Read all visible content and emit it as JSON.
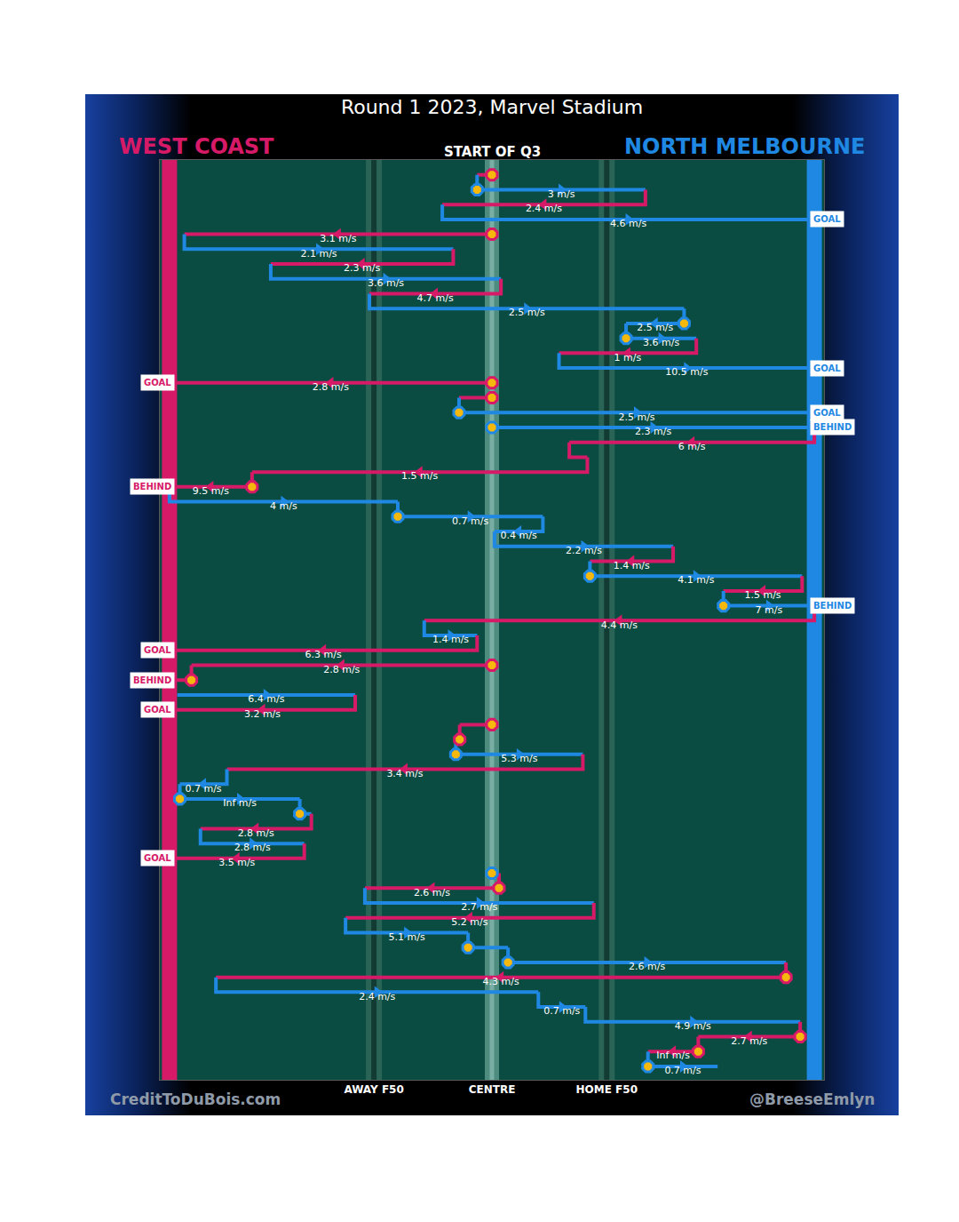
{
  "chart_data": {
    "type": "chain",
    "title": "Round 1 2023, Marvel Stadium",
    "subtitle": "START OF Q3",
    "credits": [
      "CreditToDuBois.com",
      "@BreeseEmlyn"
    ],
    "teams": [
      {
        "name": "WEST COAST",
        "color": "#d61a68",
        "goal_x": 0
      },
      {
        "name": "NORTH MELBOURNE",
        "color": "#1f88e3",
        "goal_x": 100
      }
    ],
    "xlim": [
      -1.5,
      101.5
    ],
    "ylim": [
      60.9,
      -1
    ],
    "xticks": [
      {
        "value": 31.7,
        "label": "AWAY F50"
      },
      {
        "value": 50,
        "label": "CENTRE"
      },
      {
        "value": 67.8,
        "label": "HOME F50"
      }
    ],
    "tick_labels": "x",
    "grid": true,
    "chains": [
      {
        "team": "WEST COAST",
        "from": 50,
        "to": 47.7,
        "stoppage": true
      },
      {
        "team": "NORTH MELBOURNE",
        "from": 47.7,
        "to": 73.8,
        "stoppage": true,
        "label": "3 m/s"
      },
      {
        "team": "WEST COAST",
        "from": 73.8,
        "to": 42.3,
        "stoppage": false,
        "label": "2.4 m/s"
      },
      {
        "team": "NORTH MELBOURNE",
        "from": 42.3,
        "to": 100,
        "stoppage": false,
        "label": "4.6 m/s",
        "outcome": "GOAL"
      },
      {
        "team": "WEST COAST",
        "from": 50,
        "to": 2.3,
        "stoppage": true,
        "label": "3.1 m/s"
      },
      {
        "team": "NORTH MELBOURNE",
        "from": 2.3,
        "to": 44.0,
        "stoppage": false,
        "label": "2.1 m/s"
      },
      {
        "team": "WEST COAST",
        "from": 44.0,
        "to": 15.7,
        "stoppage": false,
        "label": "2.3 m/s"
      },
      {
        "team": "NORTH MELBOURNE",
        "from": 15.7,
        "to": 51.4,
        "stoppage": false,
        "label": "3.6 m/s"
      },
      {
        "team": "WEST COAST",
        "from": 51.4,
        "to": 31.0,
        "stoppage": false,
        "label": "4.7 m/s"
      },
      {
        "team": "NORTH MELBOURNE",
        "from": 31.0,
        "to": 79.8,
        "stoppage": false,
        "label": "2.5 m/s"
      },
      {
        "team": "NORTH MELBOURNE",
        "from": 79.8,
        "to": 70.8,
        "stoppage": true,
        "label": "2.5 m/s"
      },
      {
        "team": "NORTH MELBOURNE",
        "from": 70.8,
        "to": 81.7,
        "stoppage": true,
        "label": "3.6 m/s"
      },
      {
        "team": "WEST COAST",
        "from": 81.7,
        "to": 60.4,
        "stoppage": false,
        "label": "1 m/s"
      },
      {
        "team": "NORTH MELBOURNE",
        "from": 60.4,
        "to": 100,
        "stoppage": false,
        "label": "10.5 m/s",
        "outcome": "GOAL"
      },
      {
        "team": "WEST COAST",
        "from": 50,
        "to": 0,
        "stoppage": true,
        "label": "2.8 m/s",
        "outcome": "GOAL"
      },
      {
        "team": "WEST COAST",
        "from": 50,
        "to": 44.9,
        "stoppage": true
      },
      {
        "team": "NORTH MELBOURNE",
        "from": 44.9,
        "to": 100,
        "stoppage": true,
        "label": "2.5 m/s",
        "outcome": "GOAL"
      },
      {
        "team": "NORTH MELBOURNE",
        "from": 50,
        "to": 100,
        "stoppage": true,
        "label": "2.3 m/s",
        "outcome": "BEHIND"
      },
      {
        "team": "WEST COAST",
        "from": 100,
        "to": 62.0,
        "stoppage": false,
        "label": "6 m/s"
      },
      {
        "team": "WEST COAST",
        "from": 62.0,
        "to": 64.8,
        "stoppage": false
      },
      {
        "team": "WEST COAST",
        "from": 64.8,
        "to": 12.8,
        "stoppage": false,
        "label": "1.5 m/s"
      },
      {
        "team": "WEST COAST",
        "from": 12.8,
        "to": 0,
        "stoppage": true,
        "label": "9.5 m/s",
        "outcome": "BEHIND"
      },
      {
        "team": "NORTH MELBOURNE",
        "from": 0,
        "to": 35.4,
        "stoppage": false,
        "label": "4 m/s"
      },
      {
        "team": "NORTH MELBOURNE",
        "from": 35.4,
        "to": 57.9,
        "stoppage": true,
        "label": "0.7 m/s"
      },
      {
        "team": "NORTH MELBOURNE",
        "from": 57.9,
        "to": 50.4,
        "stoppage": false,
        "label": "0.4 m/s"
      },
      {
        "team": "NORTH MELBOURNE",
        "from": 50.4,
        "to": 78.1,
        "stoppage": false,
        "label": "2.2 m/s"
      },
      {
        "team": "WEST COAST",
        "from": 78.1,
        "to": 65.2,
        "stoppage": false,
        "label": "1.4 m/s"
      },
      {
        "team": "NORTH MELBOURNE",
        "from": 65.2,
        "to": 98.1,
        "stoppage": true,
        "label": "4.1 m/s"
      },
      {
        "team": "WEST COAST",
        "from": 98.1,
        "to": 85.9,
        "stoppage": false,
        "label": "1.5 m/s"
      },
      {
        "team": "NORTH MELBOURNE",
        "from": 85.9,
        "to": 100,
        "stoppage": true,
        "label": "7 m/s",
        "outcome": "BEHIND"
      },
      {
        "team": "WEST COAST",
        "from": 100,
        "to": 39.5,
        "stoppage": false,
        "label": "4.4 m/s"
      },
      {
        "team": "NORTH MELBOURNE",
        "from": 39.5,
        "to": 47.7,
        "stoppage": false,
        "label": "1.4 m/s"
      },
      {
        "team": "WEST COAST",
        "from": 47.7,
        "to": 0,
        "stoppage": false,
        "label": "6.3 m/s",
        "outcome": "GOAL"
      },
      {
        "team": "WEST COAST",
        "from": 50,
        "to": 3.4,
        "stoppage": true,
        "label": "2.8 m/s"
      },
      {
        "team": "WEST COAST",
        "from": 3.4,
        "to": 0,
        "stoppage": true,
        "outcome": "BEHIND"
      },
      {
        "team": "NORTH MELBOURNE",
        "from": 1.2,
        "to": 28.8,
        "stoppage": false,
        "label": "6.4 m/s"
      },
      {
        "team": "WEST COAST",
        "from": 28.8,
        "to": 0,
        "stoppage": false,
        "label": "3.2 m/s",
        "outcome": "GOAL"
      },
      {
        "team": "WEST COAST",
        "from": 50,
        "to": 45.0,
        "stoppage": true
      },
      {
        "team": "WEST COAST",
        "from": 45.0,
        "to": 44.4,
        "stoppage": true
      },
      {
        "team": "NORTH MELBOURNE",
        "from": 44.4,
        "to": 64.1,
        "stoppage": true,
        "label": "5.3 m/s"
      },
      {
        "team": "WEST COAST",
        "from": 64.1,
        "to": 8.9,
        "stoppage": false,
        "label": "3.4 m/s"
      },
      {
        "team": "NORTH MELBOURNE",
        "from": 8.9,
        "to": 1.6,
        "stoppage": false,
        "label": "0.7 m/s"
      },
      {
        "team": "NORTH MELBOURNE",
        "from": 1.6,
        "to": 20.2,
        "stoppage": true,
        "label": "Inf m/s"
      },
      {
        "team": "NORTH MELBOURNE",
        "from": 20.2,
        "to": 22.0,
        "stoppage": true
      },
      {
        "team": "WEST COAST",
        "from": 22.0,
        "to": 4.8,
        "stoppage": false,
        "label": "2.8 m/s"
      },
      {
        "team": "NORTH MELBOURNE",
        "from": 4.8,
        "to": 20.9,
        "stoppage": false,
        "label": "2.8 m/s"
      },
      {
        "team": "WEST COAST",
        "from": 20.9,
        "to": 0,
        "stoppage": false,
        "label": "3.5 m/s",
        "outcome": "GOAL"
      },
      {
        "team": "NORTH MELBOURNE",
        "from": 50,
        "to": 51.1,
        "stoppage": true
      },
      {
        "team": "WEST COAST",
        "from": 51.1,
        "to": 30.3,
        "stoppage": true,
        "label": "2.6 m/s"
      },
      {
        "team": "NORTH MELBOURNE",
        "from": 30.3,
        "to": 65.8,
        "stoppage": false,
        "label": "2.7 m/s"
      },
      {
        "team": "WEST COAST",
        "from": 65.8,
        "to": 27.3,
        "stoppage": false,
        "label": "5.2 m/s"
      },
      {
        "team": "NORTH MELBOURNE",
        "from": 27.3,
        "to": 46.3,
        "stoppage": false,
        "label": "5.1 m/s"
      },
      {
        "team": "NORTH MELBOURNE",
        "from": 46.3,
        "to": 52.5,
        "stoppage": true
      },
      {
        "team": "NORTH MELBOURNE",
        "from": 52.5,
        "to": 95.6,
        "stoppage": true,
        "label": "2.6 m/s"
      },
      {
        "team": "WEST COAST",
        "from": 95.6,
        "to": 7.2,
        "stoppage": true,
        "label": "4.3 m/s"
      },
      {
        "team": "NORTH MELBOURNE",
        "from": 7.2,
        "to": 57.2,
        "stoppage": false,
        "label": "2.4 m/s"
      },
      {
        "team": "NORTH MELBOURNE",
        "from": 57.2,
        "to": 64.5,
        "stoppage": false,
        "label": "0.7 m/s"
      },
      {
        "team": "NORTH MELBOURNE",
        "from": 64.5,
        "to": 97.8,
        "stoppage": false,
        "label": "4.9 m/s"
      },
      {
        "team": "WEST COAST",
        "from": 97.8,
        "to": 82.0,
        "stoppage": true,
        "label": "2.7 m/s"
      },
      {
        "team": "WEST COAST",
        "from": 82.0,
        "to": 74.2,
        "stoppage": true,
        "label": "Inf m/s"
      },
      {
        "team": "NORTH MELBOURNE",
        "from": 74.2,
        "to": 85.0,
        "stoppage": true,
        "label": "0.7 m/s"
      }
    ]
  }
}
